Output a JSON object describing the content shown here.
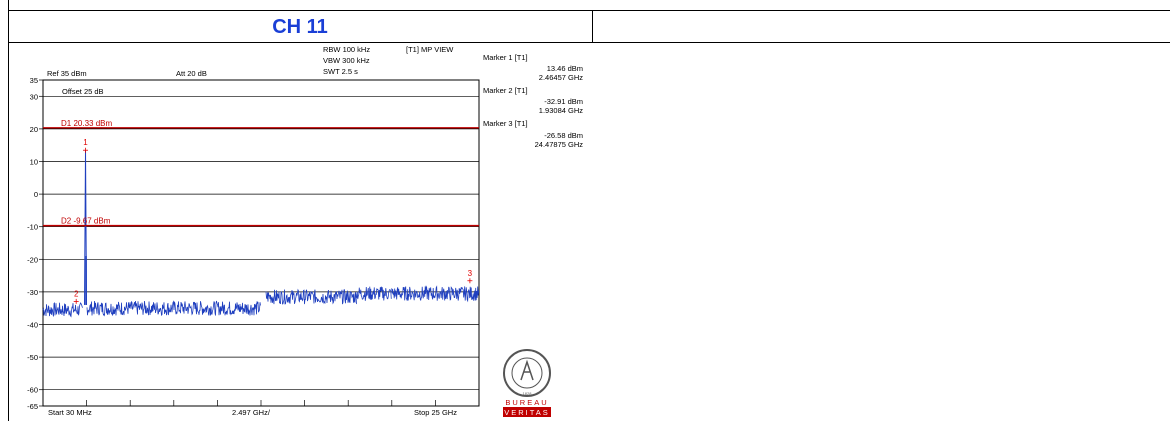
{
  "header": {
    "channel_label": "CH 11"
  },
  "chart_data": {
    "type": "line",
    "x_unit": "MHz",
    "x_start_label": "Start 30 MHz",
    "x_center_label": "2.497 GHz/",
    "x_stop_label": "Stop 25 GHz",
    "xlim": [
      30,
      25000
    ],
    "ylim": [
      -65,
      35
    ],
    "y_ticks": [
      35,
      30,
      20,
      10,
      0,
      -10,
      -20,
      -30,
      -40,
      -50,
      -60,
      -65
    ],
    "grid": true,
    "settings": {
      "ref": "Ref 35 dBm",
      "att": "Att  20 dB",
      "offset": "Offset 25 dB",
      "rbw": "RBW 100 kHz",
      "vbw": "VBW 300 kHz",
      "swt": "SWT 2.5 s",
      "view": "[T1] MP VIEW"
    },
    "display_lines": [
      {
        "label": "D1 20.33 dBm",
        "y": 20.33
      },
      {
        "label": "D2 -9.67 dBm",
        "y": -9.67
      }
    ],
    "markers": [
      {
        "id": "1",
        "title": "Marker 1 [T1]",
        "level": "13.46 dBm",
        "freq": "2.46457 GHz",
        "x": 2464.57,
        "y": 13.46
      },
      {
        "id": "2",
        "title": "Marker 2 [T1]",
        "level": "-32.91 dBm",
        "freq": "1.93084 GHz",
        "x": 1930.84,
        "y": -32.91
      },
      {
        "id": "3",
        "title": "Marker 3 [T1]",
        "level": "-26.58 dBm",
        "freq": "24.47875 GHz",
        "x": 24478.75,
        "y": -26.58
      }
    ],
    "trace_segments": [
      {
        "x": [
          30,
          2300
        ],
        "y": -35.5
      },
      {
        "x": [
          2550,
          12500
        ],
        "y": -35.0
      },
      {
        "x": [
          12800,
          18000
        ],
        "y": -31.5
      },
      {
        "x": [
          18000,
          20000
        ],
        "y": -30.5
      },
      {
        "x": [
          20000,
          25000
        ],
        "y": -30.5
      }
    ],
    "signal_peak": {
      "x": 2464.57,
      "y": 13.46
    },
    "colors": {
      "trace": "#1f3fbf",
      "display_line": "#c00000",
      "marker": "#e00000",
      "grid": "#000000"
    }
  },
  "logo": {
    "top_ring": "BUREAU VERITAS",
    "year": "1828",
    "bottom_text": [
      "BUREAU",
      "VERITAS"
    ]
  }
}
